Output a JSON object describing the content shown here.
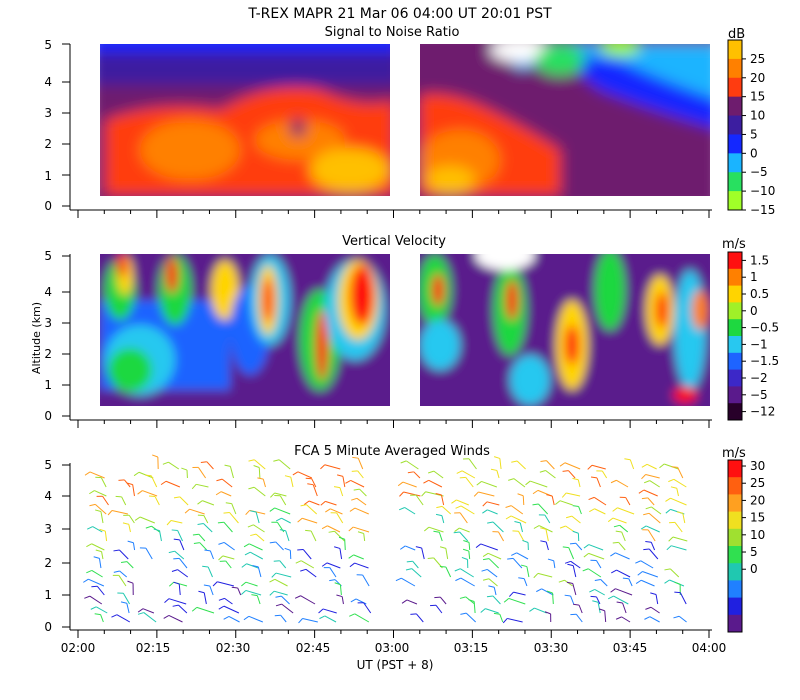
{
  "figure": {
    "title_line1": "T-REX   MAPR 21 Mar 06   04:00 UT   20:01   PST",
    "ylabel": "Altitude (km)",
    "xlabel": "UT  (PST + 8)"
  },
  "chart_data": [
    {
      "type": "heatmap",
      "title": "Signal to Noise Ratio",
      "x_range_ut_hours": [
        2.0,
        4.0
      ],
      "y_range_km": [
        0,
        5
      ],
      "yticks": [
        "0",
        "1",
        "2",
        "3",
        "4",
        "5"
      ],
      "data_gaps_ut": [
        [
          2.0,
          2.09
        ],
        [
          2.99,
          3.09
        ]
      ],
      "colorbar": {
        "unit": "dB",
        "labels": [
          "25",
          "20",
          "15",
          "10",
          "5",
          "0",
          "−5",
          "−10",
          "−15"
        ],
        "colors": [
          "#ffc000",
          "#ff8000",
          "#ff3c10",
          "#6e1c6e",
          "#3c1ea0",
          "#1428ff",
          "#1ab4ff",
          "#28e060",
          "#a0ff28"
        ]
      }
    },
    {
      "type": "heatmap",
      "title": "Vertical Velocity",
      "x_range_ut_hours": [
        2.0,
        4.0
      ],
      "y_range_km": [
        0,
        5
      ],
      "yticks": [
        "0",
        "1",
        "2",
        "3",
        "4",
        "5"
      ],
      "data_gaps_ut": [
        [
          2.0,
          2.09
        ],
        [
          2.99,
          3.09
        ]
      ],
      "colorbar": {
        "unit": "m/s",
        "labels": [
          "1.5",
          "1",
          "0.5",
          "0",
          "−0.5",
          "−1",
          "−1.5",
          "−2",
          "−5",
          "−12"
        ],
        "colors": [
          "#ff1010",
          "#ff8000",
          "#ffd400",
          "#a0f028",
          "#1ed840",
          "#28c8f0",
          "#1e64ff",
          "#3c28c8",
          "#5a1a8c",
          "#28002a"
        ]
      }
    },
    {
      "type": "scatter",
      "title": "FCA 5 Minute Averaged Winds",
      "x_range_ut_hours": [
        2.0,
        4.0
      ],
      "y_range_km": [
        0,
        5
      ],
      "yticks": [
        "0",
        "1",
        "2",
        "3",
        "4",
        "5"
      ],
      "xticks": [
        "02:00",
        "02:15",
        "02:30",
        "02:45",
        "03:00",
        "03:15",
        "03:30",
        "03:45",
        "04:00"
      ],
      "colorbar": {
        "unit": "m/s",
        "labels": [
          "30",
          "25",
          "20",
          "15",
          "10",
          "5",
          "0"
        ],
        "colors": [
          "#ff1010",
          "#ff6010",
          "#ffa020",
          "#f0e020",
          "#a0e030",
          "#30e050",
          "#20c8b0",
          "#2080ff",
          "#2020e0",
          "#5a1a8c"
        ]
      }
    }
  ]
}
